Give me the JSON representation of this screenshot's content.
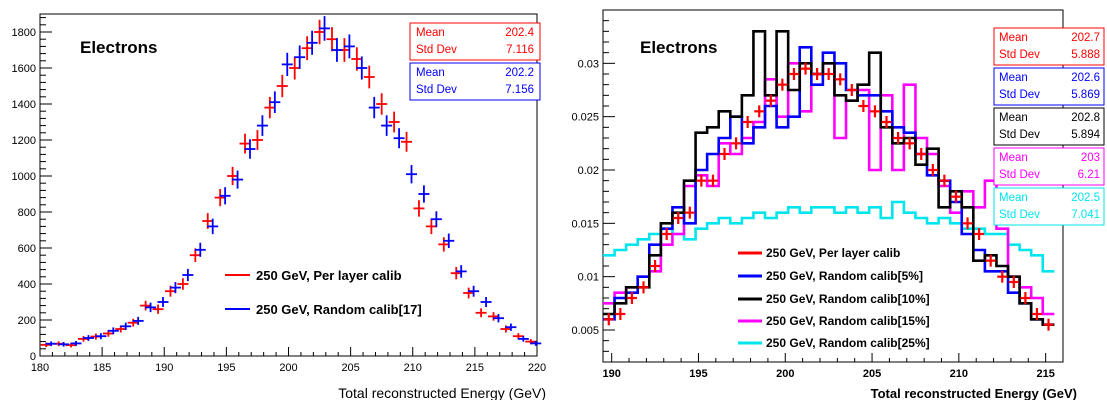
{
  "chart_data": [
    {
      "type": "histogram",
      "style": "points with error bars",
      "title": "Electrons",
      "xlabel": "Total reconstructed Energy (GeV)",
      "ylabel": "",
      "xlim": [
        180,
        220
      ],
      "ylim": [
        0,
        1900
      ],
      "xticks": [
        "180",
        "185",
        "190",
        "195",
        "200",
        "205",
        "210",
        "215",
        "220"
      ],
      "yticks": [
        "0",
        "200",
        "400",
        "600",
        "800",
        "1000",
        "1200",
        "1400",
        "1600",
        "1800"
      ],
      "series": [
        {
          "name": "250 GeV, Per layer calib",
          "color": "#ff0000",
          "stats": {
            "mean_label": "Mean",
            "mean": "202.4",
            "std_label": "Std Dev",
            "std": "7.116"
          },
          "x": [
            180.5,
            181.5,
            182.5,
            183.5,
            184.5,
            185.5,
            186.5,
            187.5,
            188.5,
            189.5,
            190.5,
            191.5,
            192.5,
            193.5,
            194.5,
            195.5,
            196.5,
            197.5,
            198.5,
            199.5,
            200.5,
            201.5,
            202.5,
            203.5,
            204.5,
            205.5,
            206.5,
            207.5,
            208.5,
            209.5,
            210.5,
            211.5,
            212.5,
            213.5,
            214.5,
            215.5,
            216.5,
            217.5,
            218.5,
            219.5
          ],
          "values": [
            62,
            68,
            60,
            95,
            108,
            125,
            150,
            185,
            280,
            260,
            360,
            400,
            560,
            750,
            880,
            1000,
            1180,
            1200,
            1380,
            1500,
            1600,
            1710,
            1800,
            1760,
            1700,
            1650,
            1550,
            1400,
            1300,
            1190,
            820,
            720,
            620,
            460,
            350,
            240,
            220,
            150,
            110,
            80
          ]
        },
        {
          "name": "250 GeV, Random calib[17]",
          "color": "#0000ff",
          "stats": {
            "mean_label": "Mean",
            "mean": "202.2",
            "std_label": "Std Dev",
            "std": "7.156"
          },
          "x": [
            180.9,
            181.9,
            182.9,
            183.9,
            184.9,
            185.9,
            186.9,
            187.9,
            188.9,
            189.9,
            190.9,
            191.9,
            192.9,
            193.9,
            194.9,
            195.9,
            196.9,
            197.9,
            198.9,
            199.9,
            200.9,
            201.9,
            202.9,
            203.9,
            204.9,
            205.9,
            206.9,
            207.9,
            208.9,
            209.9,
            210.9,
            211.9,
            212.9,
            213.9,
            214.9,
            215.9,
            216.9,
            217.9,
            218.9,
            219.9
          ],
          "values": [
            68,
            65,
            70,
            100,
            110,
            140,
            165,
            195,
            270,
            300,
            380,
            450,
            590,
            720,
            890,
            980,
            1150,
            1280,
            1410,
            1620,
            1660,
            1740,
            1820,
            1700,
            1720,
            1600,
            1380,
            1280,
            1210,
            1010,
            900,
            760,
            640,
            470,
            360,
            300,
            210,
            160,
            95,
            70
          ]
        }
      ]
    },
    {
      "type": "histogram",
      "style": "normalized",
      "title": "Electrons",
      "xlabel": "Total reconstructed Energy (GeV)",
      "ylabel": "",
      "xlim": [
        189.5,
        216
      ],
      "ylim": [
        0.002,
        0.035
      ],
      "xticks": [
        "190",
        "195",
        "200",
        "205",
        "210",
        "215"
      ],
      "yticks": [
        "0.005",
        "0.01",
        "0.015",
        "0.02",
        "0.025",
        "0.03"
      ],
      "series": [
        {
          "name": "250 GeV, Per layer calib",
          "color": "#ff0000",
          "stats": {
            "mean_label": "Mean",
            "mean": "202.7",
            "std_label": "Std Dev",
            "std": "5.888"
          },
          "values": [
            0.006,
            0.0065,
            0.008,
            0.009,
            0.011,
            0.014,
            0.0155,
            0.016,
            0.019,
            0.019,
            0.0215,
            0.0225,
            0.0245,
            0.0255,
            0.0265,
            0.028,
            0.029,
            0.0295,
            0.029,
            0.029,
            0.0285,
            0.0275,
            0.026,
            0.0255,
            0.0245,
            0.023,
            0.0225,
            0.0215,
            0.02,
            0.019,
            0.0175,
            0.015,
            0.014,
            0.0115,
            0.01,
            0.0095,
            0.008,
            0.0065,
            0.0055
          ]
        },
        {
          "name": "250 GeV, Random calib[5%]",
          "color": "#0000ff",
          "stats": {
            "mean_label": "Mean",
            "mean": "202.6",
            "std_label": "Std Dev",
            "std": "5.869"
          },
          "values": [
            0.006,
            0.008,
            0.0085,
            0.01,
            0.013,
            0.0145,
            0.0165,
            0.015,
            0.02,
            0.0215,
            0.023,
            0.025,
            0.0225,
            0.024,
            0.026,
            0.024,
            0.025,
            0.0315,
            0.028,
            0.031,
            0.03,
            0.0275,
            0.027,
            0.027,
            0.0255,
            0.024,
            0.0235,
            0.0215,
            0.0195,
            0.019,
            0.017,
            0.014,
            0.0125,
            0.0105,
            0.0105,
            0.0085,
            0.0075,
            0.006,
            0.0055
          ]
        },
        {
          "name": "250 GeV, Random calib[10%]",
          "color": "#000000",
          "stats": {
            "mean_label": "Mean",
            "mean": "202.8",
            "std_label": "Std Dev",
            "std": "5.894"
          },
          "values": [
            0.0065,
            0.0075,
            0.009,
            0.009,
            0.012,
            0.015,
            0.016,
            0.019,
            0.0235,
            0.024,
            0.0255,
            0.025,
            0.027,
            0.033,
            0.027,
            0.033,
            0.0275,
            0.03,
            0.029,
            0.03,
            0.027,
            0.0265,
            0.028,
            0.031,
            0.024,
            0.0225,
            0.023,
            0.0205,
            0.022,
            0.0165,
            0.018,
            0.0165,
            0.0115,
            0.012,
            0.011,
            0.01,
            0.0075,
            0.006,
            0.0055
          ]
        },
        {
          "name": "250 GeV, Random calib[15%]",
          "color": "#ff00ff",
          "stats": {
            "mean_label": "Mean",
            "mean": "203",
            "std_label": "Std Dev",
            "std": "6.21"
          },
          "values": [
            0.0075,
            0.0085,
            0.009,
            0.01,
            0.0105,
            0.013,
            0.014,
            0.0185,
            0.0195,
            0.0185,
            0.0225,
            0.0215,
            0.023,
            0.0245,
            0.0285,
            0.025,
            0.03,
            0.0255,
            0.029,
            0.03,
            0.023,
            0.0265,
            0.0275,
            0.02,
            0.027,
            0.02,
            0.028,
            0.023,
            0.0215,
            0.0185,
            0.016,
            0.018,
            0.0165,
            0.019,
            0.0145,
            0.01,
            0.009,
            0.008,
            0.0065
          ]
        },
        {
          "name": "250 GeV, Random calib[25%]",
          "color": "#00e5ee",
          "stats": {
            "mean_label": "Mean",
            "mean": "202.5",
            "std_label": "Std Dev",
            "std": "7.041"
          },
          "values": [
            0.012,
            0.0125,
            0.013,
            0.0135,
            0.014,
            0.0145,
            0.014,
            0.0135,
            0.0145,
            0.015,
            0.0155,
            0.015,
            0.0155,
            0.016,
            0.0155,
            0.016,
            0.0165,
            0.016,
            0.0165,
            0.0165,
            0.016,
            0.0165,
            0.016,
            0.0165,
            0.0155,
            0.017,
            0.016,
            0.0155,
            0.015,
            0.0155,
            0.015,
            0.0145,
            0.0145,
            0.014,
            0.014,
            0.013,
            0.0125,
            0.012,
            0.0105
          ]
        }
      ]
    }
  ]
}
